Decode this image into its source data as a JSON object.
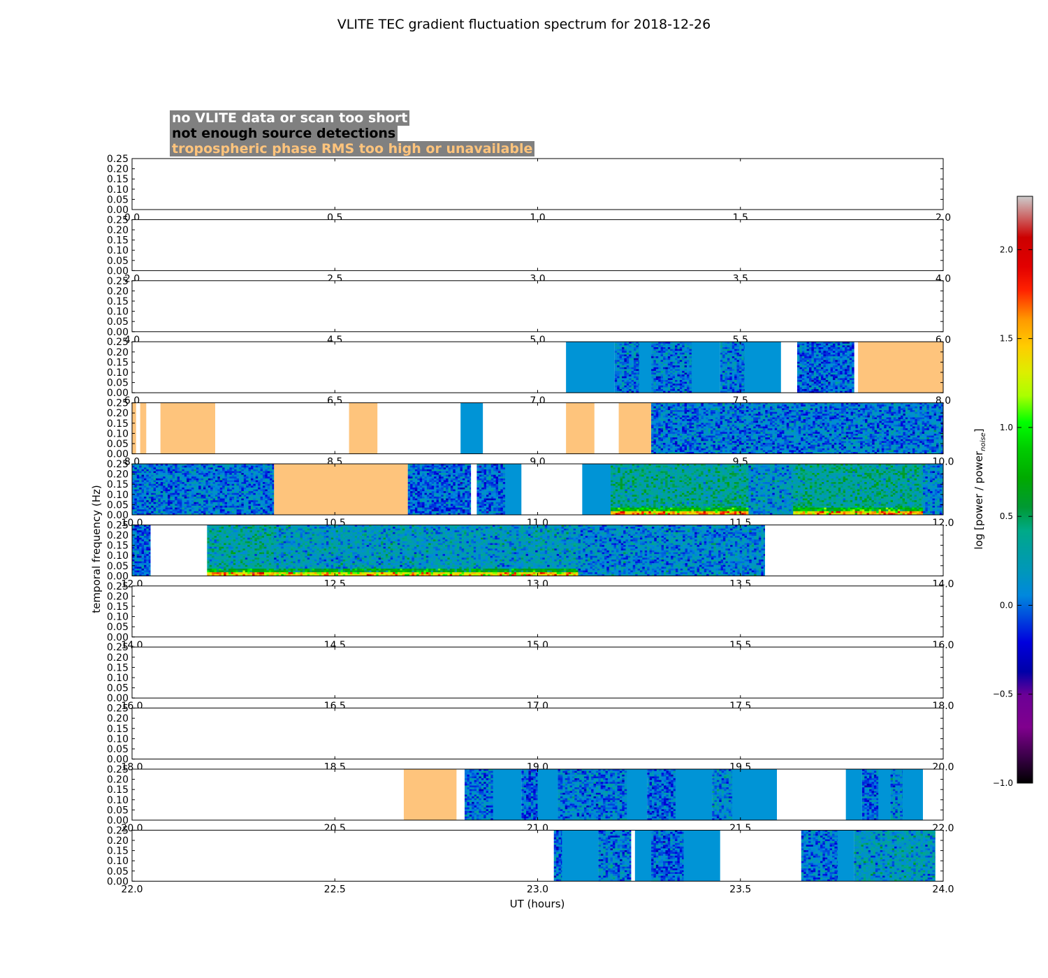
{
  "chart_data": {
    "type": "heatmap",
    "title": "VLITE TEC gradient fluctuation spectrum for 2018-12-26",
    "xlabel": "UT (hours)",
    "ylabel": "temporal frequency (Hz)",
    "colorbar_label": "log [power / power",
    "colorbar_label_sub": "noise",
    "colorbar_label_end": "]",
    "colorbar_range": [
      -1.0,
      2.3
    ],
    "colorbar_ticks": [
      "2.0",
      "1.5",
      "1.0",
      "0.5",
      "0.0",
      "−0.5",
      "−1.0"
    ],
    "colorbar_tick_values": [
      2.0,
      1.5,
      1.0,
      0.5,
      0.0,
      -0.5,
      -1.0
    ],
    "colormap": "nipy_spectral",
    "ylim": [
      0,
      0.25
    ],
    "y_ticks": [
      "0.25",
      "0.20",
      "0.15",
      "0.10",
      "0.05",
      "0.00"
    ],
    "y_tick_values": [
      0.25,
      0.2,
      0.15,
      0.1,
      0.05,
      0.0
    ],
    "legend": [
      {
        "label": "no VLITE data or scan too short",
        "color": "#ffffff"
      },
      {
        "label": "not enough source detections",
        "color": "#000000"
      },
      {
        "label": "tropospheric phase RMS too high or unavailable",
        "color": "#ffc47c"
      }
    ],
    "legend_placement": "top-left",
    "status_colors": {
      "flat": "#0094d6",
      "tropo": "#fec47c"
    },
    "panels": [
      {
        "xlim": [
          0.0,
          2.0
        ],
        "ticks": [
          "0.0",
          "0.5",
          "1.0",
          "1.5",
          "2.0"
        ],
        "segments": []
      },
      {
        "xlim": [
          2.0,
          4.0
        ],
        "ticks": [
          "2.0",
          "2.5",
          "3.0",
          "3.5",
          "4.0"
        ],
        "segments": []
      },
      {
        "xlim": [
          4.0,
          6.0
        ],
        "ticks": [
          "4.0",
          "4.5",
          "5.0",
          "5.5",
          "6.0"
        ],
        "segments": []
      },
      {
        "xlim": [
          6.0,
          8.0
        ],
        "ticks": [
          "6.0",
          "6.5",
          "7.0",
          "7.5",
          "8.0"
        ],
        "segments": [
          {
            "x": [
              7.07,
              7.19
            ],
            "kind": "flat"
          },
          {
            "x": [
              7.19,
              7.25
            ],
            "kind": "data",
            "level": 0.05
          },
          {
            "x": [
              7.25,
              7.28
            ],
            "kind": "flat"
          },
          {
            "x": [
              7.28,
              7.38
            ],
            "kind": "data",
            "level": 0.05
          },
          {
            "x": [
              7.38,
              7.45
            ],
            "kind": "flat"
          },
          {
            "x": [
              7.45,
              7.51
            ],
            "kind": "data",
            "level": 0.05
          },
          {
            "x": [
              7.51,
              7.6
            ],
            "kind": "flat"
          },
          {
            "x": [
              7.64,
              7.78
            ],
            "kind": "data",
            "level": 0.0
          },
          {
            "x": [
              7.79,
              8.0
            ],
            "kind": "tropo"
          }
        ]
      },
      {
        "xlim": [
          8.0,
          10.0
        ],
        "ticks": [
          "8.0",
          "8.5",
          "9.0",
          "9.5",
          "10.0"
        ],
        "segments": [
          {
            "x": [
              8.0,
              8.01
            ],
            "kind": "tropo"
          },
          {
            "x": [
              8.02,
              8.035
            ],
            "kind": "tropo"
          },
          {
            "x": [
              8.07,
              8.205
            ],
            "kind": "tropo"
          },
          {
            "x": [
              8.535,
              8.605
            ],
            "kind": "tropo"
          },
          {
            "x": [
              8.81,
              8.865
            ],
            "kind": "flat"
          },
          {
            "x": [
              9.07,
              9.14
            ],
            "kind": "tropo"
          },
          {
            "x": [
              9.2,
              9.28
            ],
            "kind": "tropo"
          },
          {
            "x": [
              9.28,
              10.0
            ],
            "kind": "data",
            "level": 0.05
          }
        ]
      },
      {
        "xlim": [
          10.0,
          12.0
        ],
        "ticks": [
          "10.0",
          "10.5",
          "11.0",
          "11.5",
          "12.0"
        ],
        "segments": [
          {
            "x": [
              10.0,
              10.35
            ],
            "kind": "data",
            "level": 0.05
          },
          {
            "x": [
              10.35,
              10.68
            ],
            "kind": "tropo"
          },
          {
            "x": [
              10.68,
              10.835
            ],
            "kind": "data",
            "level": 0.0
          },
          {
            "x": [
              10.85,
              10.92
            ],
            "kind": "data",
            "level": 0.0
          },
          {
            "x": [
              10.92,
              10.96
            ],
            "kind": "flat"
          },
          {
            "x": [
              11.11,
              11.18
            ],
            "kind": "flat"
          },
          {
            "x": [
              11.18,
              11.52
            ],
            "kind": "data",
            "level": 0.35,
            "hot_low": true
          },
          {
            "x": [
              11.52,
              11.63
            ],
            "kind": "data",
            "level": 0.15
          },
          {
            "x": [
              11.63,
              11.95
            ],
            "kind": "data",
            "level": 0.35,
            "hot_low": true
          },
          {
            "x": [
              11.95,
              12.0
            ],
            "kind": "data",
            "level": 0.1
          }
        ]
      },
      {
        "xlim": [
          12.0,
          14.0
        ],
        "ticks": [
          "12.0",
          "12.5",
          "13.0",
          "13.5",
          "14.0"
        ],
        "segments": [
          {
            "x": [
              12.0,
              12.045
            ],
            "kind": "data",
            "level": 0.0
          },
          {
            "x": [
              12.185,
              12.35
            ],
            "kind": "data",
            "level": 0.3,
            "hot_low": true
          },
          {
            "x": [
              12.35,
              13.1
            ],
            "kind": "data",
            "level": 0.2,
            "hot_low": true
          },
          {
            "x": [
              13.1,
              13.56
            ],
            "kind": "data",
            "level": 0.1
          }
        ]
      },
      {
        "xlim": [
          14.0,
          16.0
        ],
        "ticks": [
          "14.0",
          "14.5",
          "15.0",
          "15.5",
          "16.0"
        ],
        "segments": []
      },
      {
        "xlim": [
          16.0,
          18.0
        ],
        "ticks": [
          "16.0",
          "16.5",
          "17.0",
          "17.5",
          "18.0"
        ],
        "segments": []
      },
      {
        "xlim": [
          18.0,
          20.0
        ],
        "ticks": [
          "18.0",
          "18.5",
          "19.0",
          "19.5",
          "20.0"
        ],
        "segments": []
      },
      {
        "xlim": [
          20.0,
          22.0
        ],
        "ticks": [
          "20.0",
          "20.5",
          "21.0",
          "21.5",
          "22.0"
        ],
        "segments": [
          {
            "x": [
              20.67,
              20.8
            ],
            "kind": "tropo"
          },
          {
            "x": [
              20.82,
              20.89
            ],
            "kind": "data",
            "level": 0.05
          },
          {
            "x": [
              20.89,
              20.96
            ],
            "kind": "flat"
          },
          {
            "x": [
              20.96,
              21.0
            ],
            "kind": "data",
            "level": 0.0
          },
          {
            "x": [
              21.0,
              21.05
            ],
            "kind": "flat"
          },
          {
            "x": [
              21.05,
              21.22
            ],
            "kind": "data",
            "level": 0.05
          },
          {
            "x": [
              21.22,
              21.27
            ],
            "kind": "flat"
          },
          {
            "x": [
              21.27,
              21.34
            ],
            "kind": "data",
            "level": 0.0
          },
          {
            "x": [
              21.34,
              21.43
            ],
            "kind": "flat"
          },
          {
            "x": [
              21.43,
              21.48
            ],
            "kind": "data",
            "level": 0.1
          },
          {
            "x": [
              21.48,
              21.59
            ],
            "kind": "flat"
          },
          {
            "x": [
              21.76,
              21.8
            ],
            "kind": "flat"
          },
          {
            "x": [
              21.8,
              21.84
            ],
            "kind": "data",
            "level": 0.0
          },
          {
            "x": [
              21.84,
              21.87
            ],
            "kind": "flat"
          },
          {
            "x": [
              21.87,
              21.9
            ],
            "kind": "data",
            "level": 0.1
          },
          {
            "x": [
              21.9,
              21.95
            ],
            "kind": "flat"
          }
        ]
      },
      {
        "xlim": [
          22.0,
          24.0
        ],
        "ticks": [
          "22.0",
          "22.5",
          "23.0",
          "23.5",
          "24.0"
        ],
        "segments": [
          {
            "x": [
              23.04,
              23.06
            ],
            "kind": "data",
            "level": 0.0
          },
          {
            "x": [
              23.06,
              23.15
            ],
            "kind": "flat"
          },
          {
            "x": [
              23.15,
              23.23
            ],
            "kind": "data",
            "level": 0.05
          },
          {
            "x": [
              23.24,
              23.28
            ],
            "kind": "flat"
          },
          {
            "x": [
              23.28,
              23.36
            ],
            "kind": "data",
            "level": 0.0
          },
          {
            "x": [
              23.36,
              23.45
            ],
            "kind": "flat"
          },
          {
            "x": [
              23.65,
              23.74
            ],
            "kind": "data",
            "level": 0.05
          },
          {
            "x": [
              23.74,
              23.78
            ],
            "kind": "flat"
          },
          {
            "x": [
              23.78,
              23.98
            ],
            "kind": "data",
            "level": 0.2
          }
        ]
      }
    ]
  }
}
